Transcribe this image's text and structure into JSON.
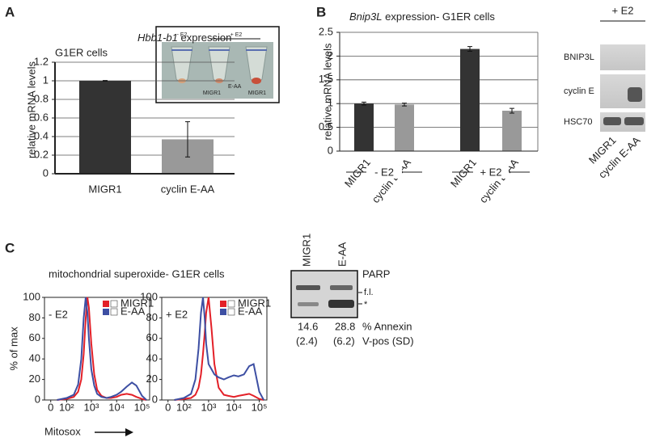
{
  "panel_labels": [
    "A",
    "B",
    "C"
  ],
  "inset_a": {
    "labels": [
      "- E2",
      "+ E2"
    ],
    "tubes": [
      "MIGR1",
      "E-AA",
      "MIGR1"
    ]
  },
  "blot_b": {
    "header": "+ E2",
    "rows": [
      "BNIP3L",
      "cyclin E",
      "HSC70"
    ],
    "lanes": [
      "MIGR1",
      "cyclin E-AA"
    ]
  },
  "panel_c_title": "mitochondrial superoxide- G1ER cells",
  "blot_c": {
    "lanes": [
      "MIGR1",
      "E-AA"
    ],
    "protein": "PARP",
    "bands": [
      "f.l.",
      "*"
    ],
    "annexin": [
      14.6,
      28.8
    ],
    "sd": [
      "(2.4)",
      "(6.2)"
    ],
    "annexin_label": [
      "% Annexin",
      "V-pos (SD)"
    ]
  },
  "chart_data": [
    {
      "type": "bar",
      "title_gene": "Hbb1-b1",
      "title": "expression",
      "subtitle": "G1ER cells",
      "ylabel": "relative mRNA levels",
      "categories": [
        "MIGR1",
        "cyclin E-AA"
      ],
      "values": [
        1,
        0.37
      ],
      "errors": [
        0.003,
        0.19
      ],
      "colors": [
        "#333333",
        "#999999"
      ],
      "ylim": [
        0,
        1.2
      ],
      "yticks": [
        0,
        0.2,
        0.4,
        0.6,
        0.8,
        1,
        1.2
      ],
      "grid": true
    },
    {
      "type": "bar",
      "title_gene": "Bnip3L",
      "title": "expression- G1ER cells",
      "ylabel": "relative mRNA levels",
      "categories": [
        "MIGR1",
        "cyclin E-AA",
        "MIGR1",
        "cyclin E-AA"
      ],
      "groups": [
        "- E2",
        "+ E2"
      ],
      "values": [
        1,
        0.98,
        2.15,
        0.85
      ],
      "errors": [
        0.03,
        0.03,
        0.05,
        0.05
      ],
      "colors": [
        "#333333",
        "#999999",
        "#333333",
        "#999999"
      ],
      "ylim": [
        0,
        2.5
      ],
      "yticks": [
        0,
        0.5,
        1,
        1.5,
        2,
        2.5
      ],
      "grid": true
    },
    {
      "type": "line",
      "panel_label": "- E2",
      "ylabel": "% of max",
      "xlabel": "Mitosox",
      "xscale": "logicle",
      "legend": "upper right",
      "x": [
        30,
        100,
        200,
        300,
        400,
        500,
        600,
        700,
        800,
        1000,
        1300,
        1700,
        2500,
        4000,
        6000,
        10000,
        15000,
        25000,
        40000,
        60000,
        100000,
        150000
      ],
      "series": [
        {
          "name": "MIGR1",
          "color": "#e32028",
          "values": [
            0,
            1,
            3,
            8,
            20,
            45,
            80,
            100,
            90,
            55,
            25,
            10,
            4,
            2,
            2,
            3,
            5,
            6,
            5,
            3,
            1,
            0
          ]
        },
        {
          "name": "E-AA",
          "color": "#3d4fa3",
          "values": [
            0,
            2,
            5,
            15,
            40,
            80,
            100,
            85,
            60,
            30,
            14,
            6,
            3,
            2,
            3,
            5,
            8,
            13,
            17,
            14,
            4,
            0
          ]
        }
      ],
      "xlim": [
        -30,
        200000
      ],
      "xticks": [
        0,
        {
          "value": 100,
          "label": "10²"
        },
        {
          "value": 1000,
          "label": "10³"
        },
        {
          "value": 10000,
          "label": "10⁴"
        },
        {
          "value": 100000,
          "label": "10⁵"
        }
      ],
      "ylim": [
        0,
        100
      ],
      "yticks": [
        0,
        20,
        40,
        60,
        80,
        100
      ]
    },
    {
      "type": "line",
      "panel_label": "+ E2",
      "xscale": "logicle",
      "legend": "upper right",
      "x": [
        30,
        100,
        200,
        300,
        400,
        500,
        600,
        700,
        800,
        1000,
        1300,
        1700,
        2500,
        4000,
        6000,
        10000,
        15000,
        25000,
        40000,
        60000,
        100000,
        150000
      ],
      "series": [
        {
          "name": "MIGR1",
          "color": "#e32028",
          "values": [
            0,
            1,
            2,
            5,
            12,
            25,
            45,
            65,
            85,
            100,
            70,
            35,
            12,
            5,
            4,
            3,
            4,
            5,
            6,
            4,
            1,
            0
          ]
        },
        {
          "name": "E-AA",
          "color": "#3d4fa3",
          "values": [
            0,
            2,
            6,
            20,
            50,
            85,
            100,
            80,
            55,
            35,
            30,
            25,
            22,
            20,
            22,
            24,
            23,
            25,
            33,
            35,
            8,
            0
          ]
        }
      ],
      "xlim": [
        -30,
        200000
      ],
      "xticks": [
        0,
        {
          "value": 100,
          "label": "10²"
        },
        {
          "value": 1000,
          "label": "10³"
        },
        {
          "value": 10000,
          "label": "10⁴"
        },
        {
          "value": 100000,
          "label": "10⁵"
        }
      ],
      "ylim": [
        0,
        100
      ],
      "yticks": [
        0,
        20,
        40,
        60,
        80,
        100
      ]
    }
  ]
}
